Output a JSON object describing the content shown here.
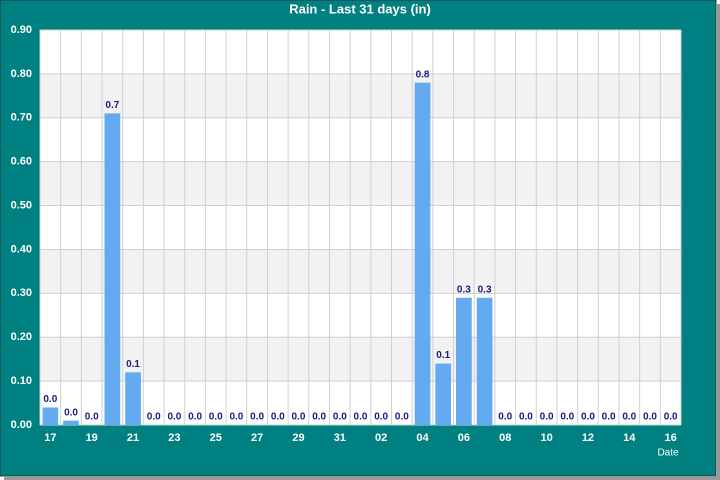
{
  "chart_data": {
    "type": "bar",
    "title": "Rain - Last 31 days (in)",
    "x_label": "Date",
    "categories": [
      "17",
      null,
      "19",
      null,
      "21",
      null,
      "23",
      null,
      "25",
      null,
      "27",
      null,
      "29",
      null,
      "31",
      null,
      "02",
      null,
      "04",
      null,
      "06",
      null,
      "08",
      null,
      "10",
      null,
      "12",
      null,
      "14",
      null,
      "16"
    ],
    "values": [
      0.04,
      0.01,
      0,
      0.71,
      0.12,
      0,
      0,
      0,
      0,
      0,
      0,
      0,
      0,
      0,
      0,
      0,
      0,
      0,
      0.78,
      0.14,
      0.29,
      0.29,
      0,
      0,
      0,
      0,
      0,
      0,
      0,
      0,
      0
    ],
    "value_labels": [
      "0.0",
      "0.0",
      "0.0",
      "0.7",
      "0.1",
      "0.0",
      "0.0",
      "0.0",
      "0.0",
      "0.0",
      "0.0",
      "0.0",
      "0.0",
      "0.0",
      "0.0",
      "0.0",
      "0.0",
      "0.0",
      "0.8",
      "0.1",
      "0.3",
      "0.3",
      "0.0",
      "0.0",
      "0.0",
      "0.0",
      "0.0",
      "0.0",
      "0.0",
      "0.0",
      "0.0"
    ],
    "color": "#63aaf0",
    "ylim": [
      0,
      0.9
    ],
    "yticks": [
      {
        "value": 0,
        "label": "0.00"
      },
      {
        "value": 0.1,
        "label": "0.10"
      },
      {
        "value": 0.2,
        "label": "0.20"
      },
      {
        "value": 0.3,
        "label": "0.30"
      },
      {
        "value": 0.4,
        "label": "0.40"
      },
      {
        "value": 0.5,
        "label": "0.50"
      },
      {
        "value": 0.6,
        "label": "0.60"
      },
      {
        "value": 0.7,
        "label": "0.70"
      },
      {
        "value": 0.8,
        "label": "0.80"
      },
      {
        "value": 0.9,
        "label": "0.90"
      }
    ],
    "grid": true
  }
}
